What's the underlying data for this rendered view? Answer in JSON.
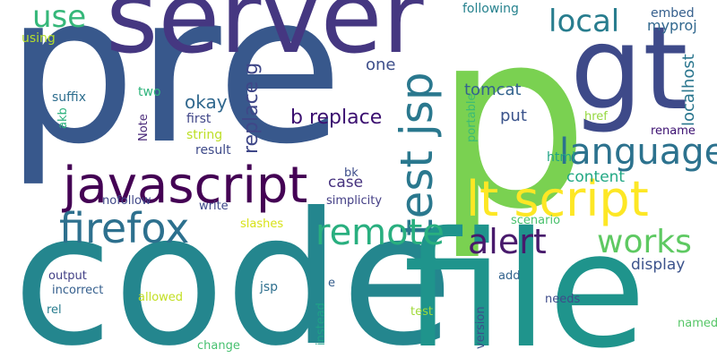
{
  "cloud": {
    "words": [
      {
        "text": "p",
        "color": "#7ad151"
      },
      {
        "text": "pre",
        "color": "#38588c"
      },
      {
        "text": "code",
        "color": "#24868e"
      },
      {
        "text": "file",
        "color": "#1f948c"
      },
      {
        "text": "server",
        "color": "#453781"
      },
      {
        "text": "gt",
        "color": "#3e4a89"
      },
      {
        "text": "javascript",
        "color": "#440154"
      },
      {
        "text": "test jsp",
        "color": "#2a788e"
      },
      {
        "text": "lt script",
        "color": "#fde725"
      },
      {
        "text": "firefox",
        "color": "#2d708e"
      },
      {
        "text": "language",
        "color": "#2c728e"
      },
      {
        "text": "remote",
        "color": "#29af7f"
      },
      {
        "text": "alert",
        "color": "#481a6c"
      },
      {
        "text": "works",
        "color": "#5ec962"
      },
      {
        "text": "local",
        "color": "#287d8e"
      },
      {
        "text": "use",
        "color": "#35b779"
      },
      {
        "text": "b replace",
        "color": "#3b0f70"
      },
      {
        "text": "replace g",
        "color": "#3f4788"
      },
      {
        "text": "okay",
        "color": "#31688e"
      },
      {
        "text": "tomcat",
        "color": "#33638d"
      },
      {
        "text": "localhost",
        "color": "#2a768e"
      },
      {
        "text": "one",
        "color": "#3d4e8a"
      },
      {
        "text": "put",
        "color": "#3a538b"
      },
      {
        "text": "case",
        "color": "#46327e"
      },
      {
        "text": "content",
        "color": "#22a884"
      },
      {
        "text": "display",
        "color": "#3b528b"
      },
      {
        "text": "embed",
        "color": "#355f8d"
      },
      {
        "text": "myproj",
        "color": "#31688e"
      },
      {
        "text": "following",
        "color": "#26828e"
      },
      {
        "text": "html",
        "color": "#20a386"
      },
      {
        "text": "using",
        "color": "#b5de2b"
      },
      {
        "text": "suffix",
        "color": "#2e6e8e"
      },
      {
        "text": "two",
        "color": "#2fb47c"
      },
      {
        "text": "akb",
        "color": "#2db27d"
      },
      {
        "text": "Note",
        "color": "#482878"
      },
      {
        "text": "first",
        "color": "#404688"
      },
      {
        "text": "string",
        "color": "#bddf26"
      },
      {
        "text": "result",
        "color": "#3e4a89"
      },
      {
        "text": "portable",
        "color": "#3bbb75"
      },
      {
        "text": "href",
        "color": "#95d840"
      },
      {
        "text": "rename",
        "color": "#3b0f70"
      },
      {
        "text": "nofollow",
        "color": "#3f4788"
      },
      {
        "text": "bk",
        "color": "#3d4d8a"
      },
      {
        "text": "simplicity",
        "color": "#433e85"
      },
      {
        "text": "write",
        "color": "#3e4989"
      },
      {
        "text": "slashes",
        "color": "#d8e219"
      },
      {
        "text": "scenario",
        "color": "#4ac16d"
      },
      {
        "text": "output",
        "color": "#424086"
      },
      {
        "text": "incorrect",
        "color": "#355f8d"
      },
      {
        "text": "jsp",
        "color": "#2e6f8e"
      },
      {
        "text": "e",
        "color": "#355e8d"
      },
      {
        "text": "add",
        "color": "#33638d"
      },
      {
        "text": "rel",
        "color": "#287c8e"
      },
      {
        "text": "allowed",
        "color": "#c2df23"
      },
      {
        "text": "instead",
        "color": "#1fa187"
      },
      {
        "text": "test",
        "color": "#a0da39"
      },
      {
        "text": "needs",
        "color": "#3e4c8a"
      },
      {
        "text": "version",
        "color": "#3c508b"
      },
      {
        "text": "named",
        "color": "#56c667"
      },
      {
        "text": "change",
        "color": "#46c06f"
      }
    ]
  }
}
